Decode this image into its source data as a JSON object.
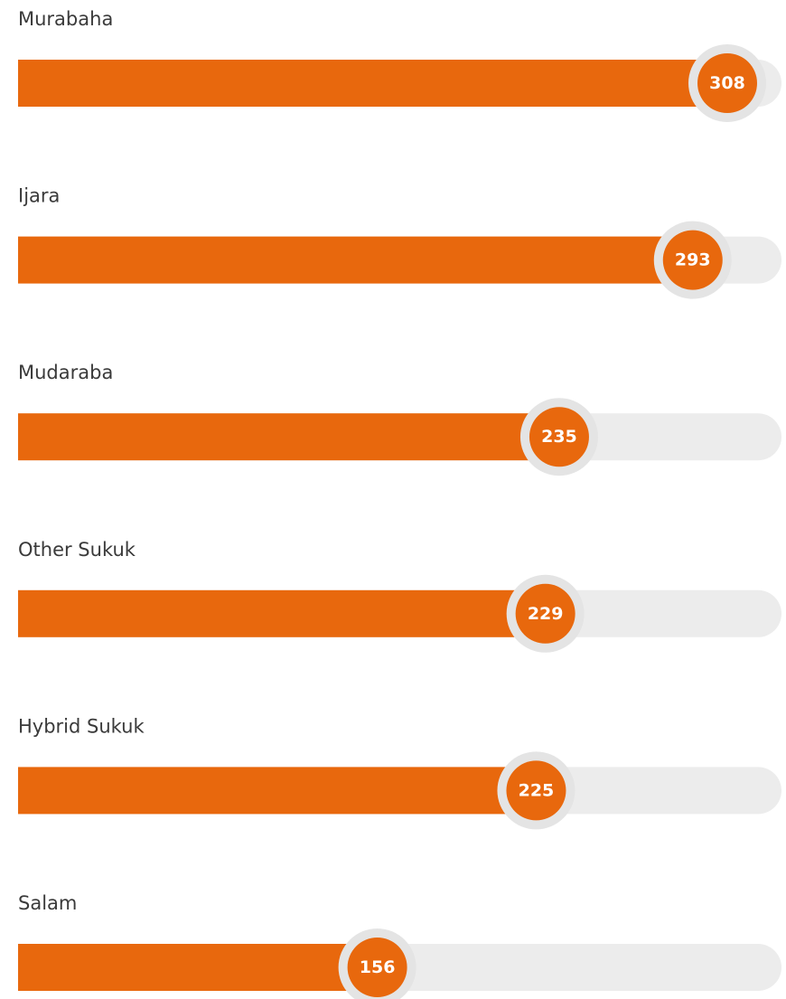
{
  "chart_data": {
    "type": "bar",
    "orientation": "horizontal",
    "categories": [
      "Murabaha",
      "Ijara",
      "Mudaraba",
      "Other Sukuk",
      "Hybrid Sukuk",
      "Salam"
    ],
    "values": [
      308,
      293,
      235,
      229,
      225,
      156
    ],
    "color": "#e8680d"
  }
}
